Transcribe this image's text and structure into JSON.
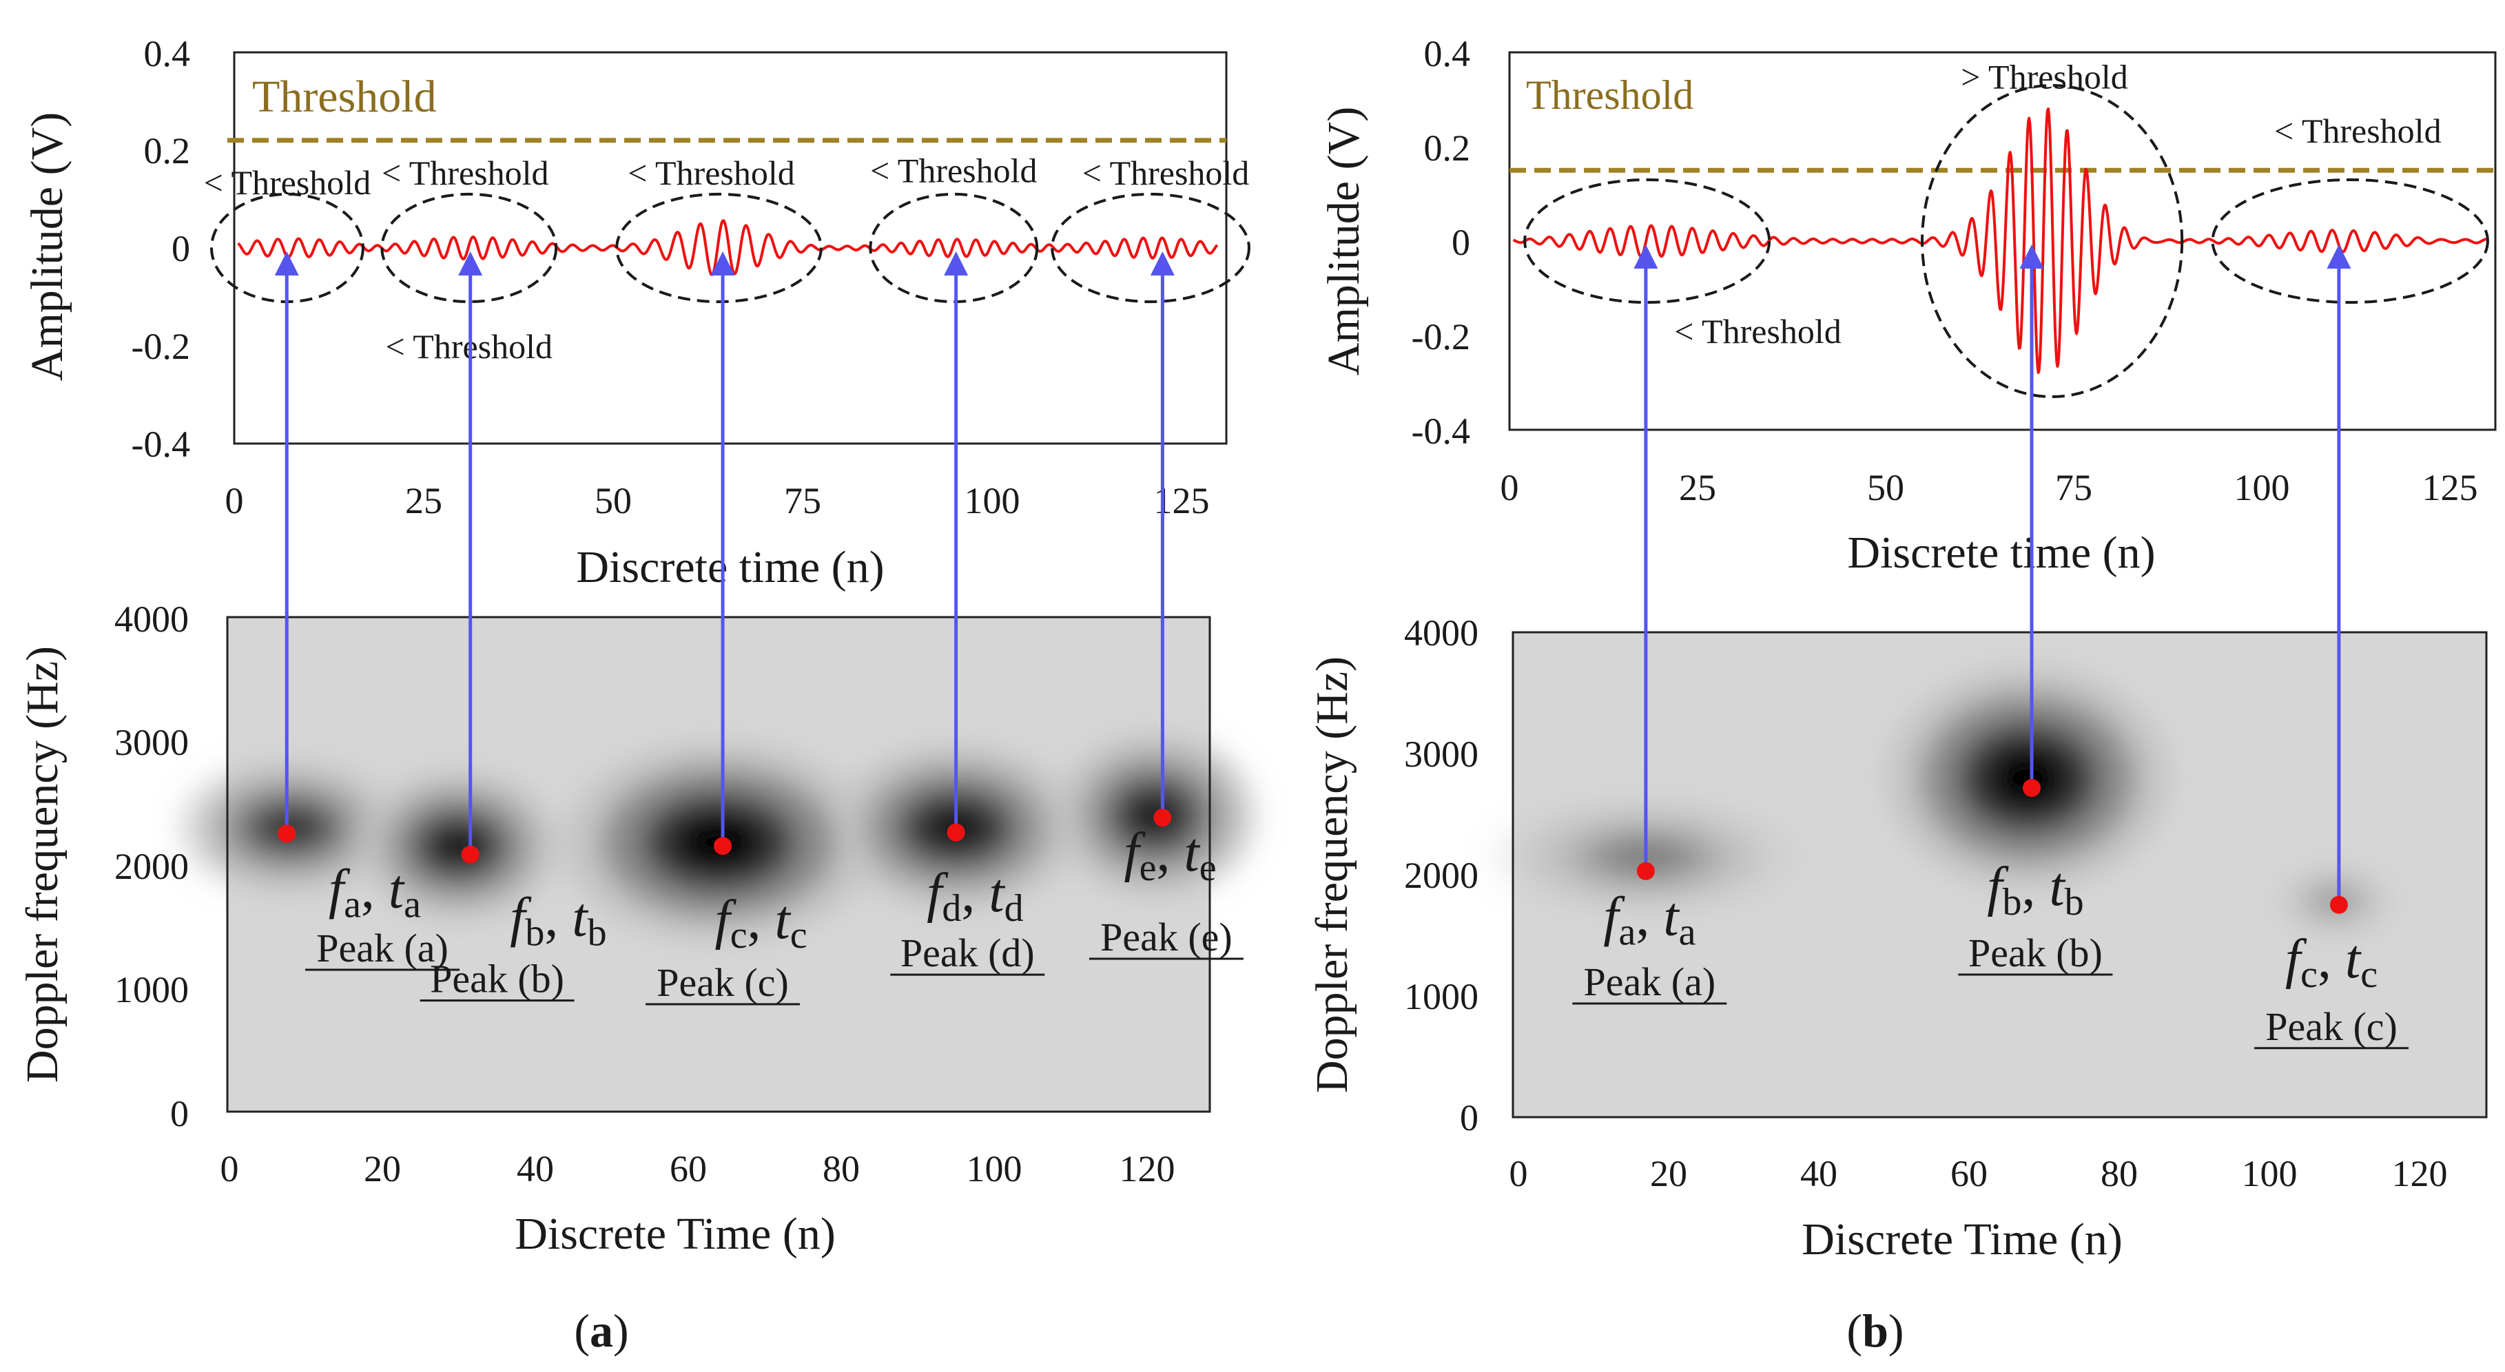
{
  "chart_data": [
    {
      "panel": "(a)",
      "type": "composite",
      "panel_label": {
        "open": "(",
        "letter": "a",
        "close": ")"
      },
      "colors": {
        "signal": "#ee1111",
        "threshold": "#a08126",
        "arrow": "#5555ee",
        "peak": "#ee1111",
        "spectrogram_bg": "#d6d6d6"
      },
      "signal": {
        "type": "line",
        "xlabel": "Discrete time (n)",
        "ylabel": "Amplitude (V)",
        "xlim": [
          0,
          131
        ],
        "ylim": [
          -0.4,
          0.4
        ],
        "xticks": [
          0,
          25,
          50,
          75,
          100,
          125
        ],
        "xtick_labels": [
          "0",
          "25",
          "50",
          "75",
          "100",
          "125"
        ],
        "yticks": [
          0.4,
          0.2,
          0,
          -0.2,
          -0.4
        ],
        "ytick_labels": [
          "0.4",
          "0.2",
          "0",
          "-0.2",
          "-0.4"
        ],
        "threshold": {
          "label": "Threshold",
          "value": 0.22
        },
        "bursts": [
          {
            "center": 8,
            "amplitude": 0.015,
            "width": 10,
            "period": 2.8
          },
          {
            "center": 31,
            "amplitude": 0.02,
            "width": 10,
            "period": 2.6
          },
          {
            "center": 64,
            "amplitude": 0.06,
            "width": 7,
            "period": 3.0
          },
          {
            "center": 95,
            "amplitude": 0.022,
            "width": 10,
            "period": 2.5
          },
          {
            "center": 122,
            "amplitude": 0.018,
            "width": 9,
            "period": 2.5
          }
        ],
        "regions": [
          {
            "center": 7,
            "half_width": 10,
            "half_height": 0.11
          },
          {
            "center": 31,
            "half_width": 11.5,
            "half_height": 0.11
          },
          {
            "center": 64,
            "half_width": 13.5,
            "half_height": 0.11
          },
          {
            "center": 95,
            "half_width": 11,
            "half_height": 0.11
          },
          {
            "center": 121,
            "half_width": 13,
            "half_height": 0.11
          }
        ],
        "annotations": [
          {
            "text": "< Threshold",
            "x": 7,
            "y": 0.135
          },
          {
            "text": "< Threshold",
            "x": 30.5,
            "y": 0.155
          },
          {
            "text": "< Threshold",
            "x": 63,
            "y": 0.155
          },
          {
            "text": "< Threshold",
            "x": 95,
            "y": 0.16
          },
          {
            "text": "< Threshold",
            "x": 123,
            "y": 0.155
          },
          {
            "text": "< Threshold",
            "x": 31,
            "y": -0.2
          }
        ]
      },
      "spectrogram": {
        "type": "heatmap",
        "xlabel": "Discrete Time (n)",
        "ylabel": "Doppler frequency (Hz)",
        "xlim": [
          0,
          128
        ],
        "ylim": [
          0,
          4000
        ],
        "xticks": [
          0,
          20,
          40,
          60,
          80,
          100,
          120
        ],
        "xtick_labels": [
          "0",
          "20",
          "40",
          "60",
          "80",
          "100",
          "120"
        ],
        "yticks": [
          0,
          1000,
          2000,
          3000,
          4000
        ],
        "ytick_labels": [
          "0",
          "1000",
          "2000",
          "3000",
          "4000"
        ],
        "blobs": [
          {
            "t": 8,
            "f": 2300,
            "rt": 10,
            "rf": 380,
            "intensity": 0.55
          },
          {
            "t": 30,
            "f": 2150,
            "rt": 9,
            "rf": 420,
            "intensity": 0.75
          },
          {
            "t": 64,
            "f": 2180,
            "rt": 14,
            "rf": 560,
            "intensity": 1.0
          },
          {
            "t": 95,
            "f": 2300,
            "rt": 11,
            "rf": 460,
            "intensity": 0.8
          },
          {
            "t": 121,
            "f": 2400,
            "rt": 9,
            "rf": 460,
            "intensity": 0.72
          }
        ],
        "peaks": [
          {
            "name": "Peak (a)",
            "f": "f",
            "t": "t",
            "sub": "a",
            "pt": 7.5,
            "pf": 2250,
            "lt": 19,
            "lf": 1650,
            "pl": 20,
            "plf": 1210
          },
          {
            "name": "Peak (b)",
            "f": "f",
            "t": "t",
            "sub": "b",
            "pt": 31.5,
            "pf": 2080,
            "lt": 43,
            "lf": 1420,
            "pl": 35,
            "plf": 960
          },
          {
            "name": "Peak (c)",
            "f": "f",
            "t": "t",
            "sub": "c",
            "pt": 64.5,
            "pf": 2150,
            "lt": 69.5,
            "lf": 1400,
            "pl": 64.5,
            "plf": 930
          },
          {
            "name": "Peak (d)",
            "f": "f",
            "t": "t",
            "sub": "d",
            "pt": 95,
            "pf": 2260,
            "lt": 97.5,
            "lf": 1620,
            "pl": 96.5,
            "plf": 1170
          },
          {
            "name": "Peak (e)",
            "f": "f",
            "t": "t",
            "sub": "e",
            "pt": 122,
            "pf": 2380,
            "lt": 123,
            "lf": 1950,
            "pl": 122.5,
            "plf": 1300
          }
        ]
      }
    },
    {
      "panel": "(b)",
      "type": "composite",
      "panel_label": {
        "open": "(",
        "letter": "b",
        "close": ")"
      },
      "colors": {
        "signal": "#ee1111",
        "threshold": "#a08126",
        "arrow": "#5555ee",
        "peak": "#ee1111",
        "spectrogram_bg": "#d6d6d6"
      },
      "signal": {
        "type": "line",
        "xlabel": "Discrete time (n)",
        "ylabel": "Amplitude (V)",
        "xlim": [
          0,
          129
        ],
        "ylim": [
          -0.4,
          0.4
        ],
        "xticks": [
          0,
          25,
          50,
          75,
          100,
          125
        ],
        "xtick_labels": [
          "0",
          "25",
          "50",
          "75",
          "100",
          "125"
        ],
        "yticks": [
          0.4,
          0.2,
          0,
          -0.2,
          -0.4
        ],
        "ytick_labels": [
          "0.4",
          "0.2",
          "0",
          "-0.2",
          "-0.4"
        ],
        "threshold": {
          "label": "Threshold",
          "value": 0.15
        },
        "bursts": [
          {
            "center": 18,
            "amplitude": 0.03,
            "width": 12,
            "period": 2.7
          },
          {
            "center": 70,
            "amplitude": 0.28,
            "width": 7,
            "period": 2.5
          },
          {
            "center": 110,
            "amplitude": 0.022,
            "width": 11,
            "period": 2.8
          }
        ],
        "regions": [
          {
            "center": 18,
            "half_width": 16,
            "half_height": 0.13
          },
          {
            "center": 71,
            "half_width": 17,
            "half_height": 0.33
          },
          {
            "center": 110,
            "half_width": 18,
            "half_height": 0.13
          }
        ],
        "annotations": [
          {
            "text": "> Threshold",
            "x": 70,
            "y": 0.35
          },
          {
            "text": "< Threshold",
            "x": 111,
            "y": 0.235
          },
          {
            "text": "< Threshold",
            "x": 32.5,
            "y": -0.19
          }
        ]
      },
      "spectrogram": {
        "type": "heatmap",
        "xlabel": "Discrete Time (n)",
        "ylabel": "Doppler frequency (Hz)",
        "xlim": [
          0,
          129
        ],
        "ylim": [
          0,
          4000
        ],
        "xticks": [
          0,
          20,
          40,
          60,
          80,
          100,
          120
        ],
        "xtick_labels": [
          "0",
          "20",
          "40",
          "60",
          "80",
          "100",
          "120"
        ],
        "yticks": [
          0,
          1000,
          2000,
          3000,
          4000
        ],
        "ytick_labels": [
          "0",
          "1000",
          "2000",
          "3000",
          "4000"
        ],
        "blobs": [
          {
            "t": 17,
            "f": 2150,
            "rt": 14,
            "rf": 340,
            "intensity": 0.22
          },
          {
            "t": 68,
            "f": 2800,
            "rt": 13,
            "rf": 640,
            "intensity": 1.0
          },
          {
            "t": 109,
            "f": 1780,
            "rt": 6,
            "rf": 230,
            "intensity": 0.15
          }
        ],
        "peaks": [
          {
            "name": "Peak (a)",
            "f": "f",
            "t": "t",
            "sub": "a",
            "pt": 17,
            "pf": 2030,
            "lt": 17.5,
            "lf": 1500,
            "pl": 17.5,
            "plf": 1000
          },
          {
            "name": "Peak (b)",
            "f": "f",
            "t": "t",
            "sub": "b",
            "pt": 68.5,
            "pf": 2720,
            "lt": 69,
            "lf": 1750,
            "pl": 69,
            "plf": 1240
          },
          {
            "name": "Peak (c)",
            "f": "f",
            "t": "t",
            "sub": "c",
            "pt": 109.5,
            "pf": 1750,
            "lt": 108.5,
            "lf": 1150,
            "pl": 108.5,
            "plf": 630
          }
        ]
      }
    }
  ]
}
